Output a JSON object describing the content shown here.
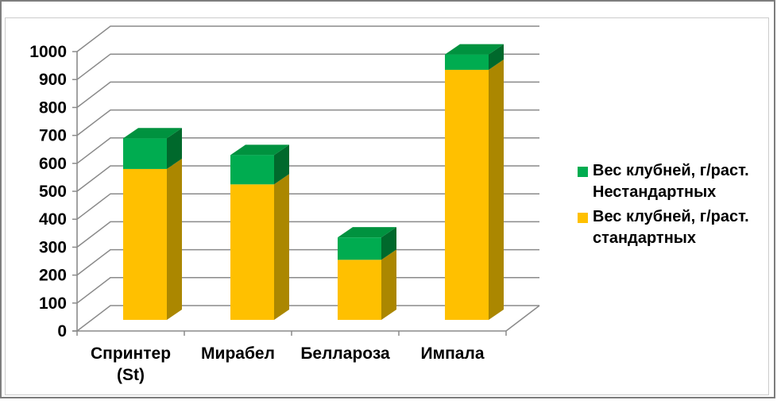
{
  "chart_data": {
    "type": "bar",
    "subtype": "3d-stacked-column",
    "title": "",
    "categories": [
      "Спринтер (St)",
      "Мирабел",
      "Беллароза",
      "Импала"
    ],
    "category_label_lines": [
      [
        "Спринтер",
        "(St)"
      ],
      [
        "Мирабел"
      ],
      [
        "Беллароза"
      ],
      [
        "Импала"
      ]
    ],
    "series": [
      {
        "name": "Вес клубней, г/раст. стандартных",
        "values": [
          540,
          485,
          215,
          895
        ],
        "color": "#FFC000",
        "side_color": "#AB8700",
        "top_color": "#D9A300"
      },
      {
        "name": "Вес клубней, г/раст. Нестандартных",
        "values": [
          110,
          105,
          80,
          55
        ],
        "color": "#00AC50",
        "side_color": "#00692C",
        "top_color": "#00923F"
      }
    ],
    "stack_totals": [
      650,
      590,
      295,
      950
    ],
    "stacked": true,
    "ylim": [
      0,
      1000
    ],
    "yticks": [
      0,
      100,
      200,
      300,
      400,
      500,
      600,
      700,
      800,
      900,
      1000
    ],
    "grid": true,
    "legend_position": "right",
    "legend": [
      {
        "series": "Вес клубней, г/раст. Нестандартных",
        "swatch_color": "#00AC50",
        "label_lines": [
          "Вес клубней, г/раст.",
          "Нестандартных"
        ]
      },
      {
        "series": "Вес клубней, г/раст. стандартных",
        "swatch_color": "#FFC000",
        "label_lines": [
          "Вес клубней, г/раст.",
          "стандартных"
        ]
      }
    ]
  },
  "colors": {
    "background": "#FFFFFF",
    "outer_border": "#7D7D7D",
    "inner_border": "#CCCCCC",
    "gridline": "#8A8A8A",
    "axis": "#8A8A8A",
    "text": "#000000"
  }
}
